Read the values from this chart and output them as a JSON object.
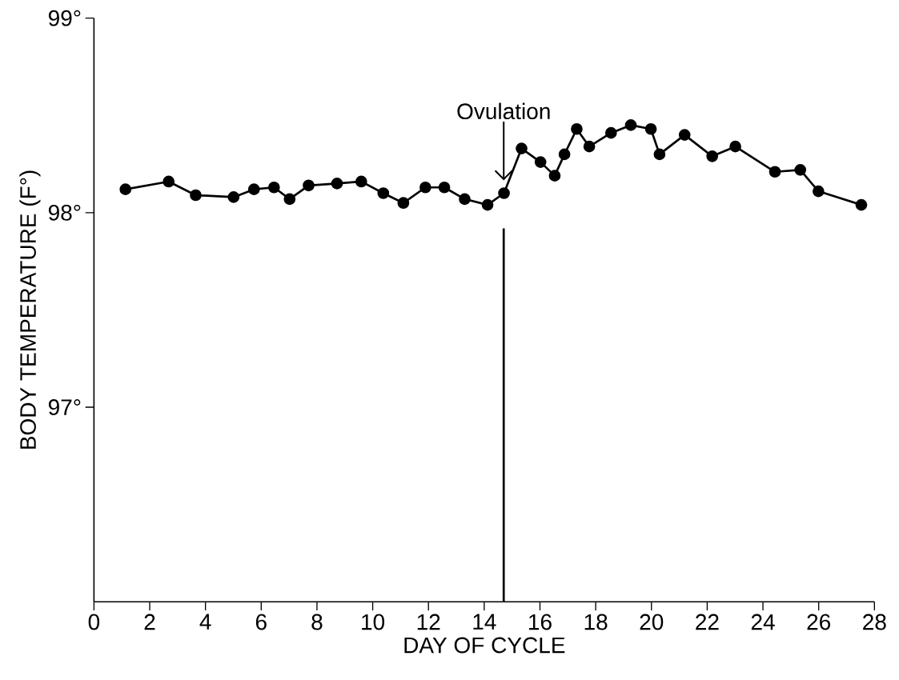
{
  "chart_data": {
    "type": "line",
    "xlabel": "DAY OF CYCLE",
    "ylabel": "BODY TEMPERATURE (F°)",
    "x": [
      1.13,
      2.68,
      3.65,
      5.01,
      5.74,
      6.46,
      7.02,
      7.7,
      8.72,
      9.59,
      10.38,
      11.1,
      11.89,
      12.57,
      13.3,
      14.12,
      14.71,
      15.34,
      16.02,
      16.53,
      16.88,
      17.32,
      17.77,
      18.55,
      19.26,
      19.98,
      20.29,
      21.19,
      22.18,
      23.01,
      24.43,
      25.34,
      25.99,
      27.53
    ],
    "values": [
      98.12,
      98.16,
      98.09,
      98.08,
      98.12,
      98.13,
      98.07,
      98.14,
      98.15,
      98.16,
      98.1,
      98.05,
      98.13,
      98.13,
      98.07,
      98.04,
      98.1,
      98.33,
      98.26,
      98.19,
      98.3,
      98.43,
      98.34,
      98.41,
      98.45,
      98.43,
      98.3,
      98.4,
      98.29,
      98.34,
      98.21,
      98.22,
      98.11,
      98.04
    ],
    "color": "#000000",
    "marker": "circle",
    "line_style": "solid",
    "grid": false,
    "xlim": [
      0,
      28
    ],
    "xticks": [
      0,
      2,
      4,
      6,
      8,
      10,
      12,
      14,
      16,
      18,
      20,
      22,
      24,
      26,
      28
    ],
    "ylim": [
      96,
      99
    ],
    "yticks": [
      {
        "value": 97,
        "label": "97°"
      },
      {
        "value": 98,
        "label": "98°"
      },
      {
        "value": 99,
        "label": "99°"
      }
    ],
    "ref_lines": [
      {
        "axis": "x",
        "value": 14.7,
        "label": "Ovulation",
        "color": "#000000"
      }
    ]
  }
}
